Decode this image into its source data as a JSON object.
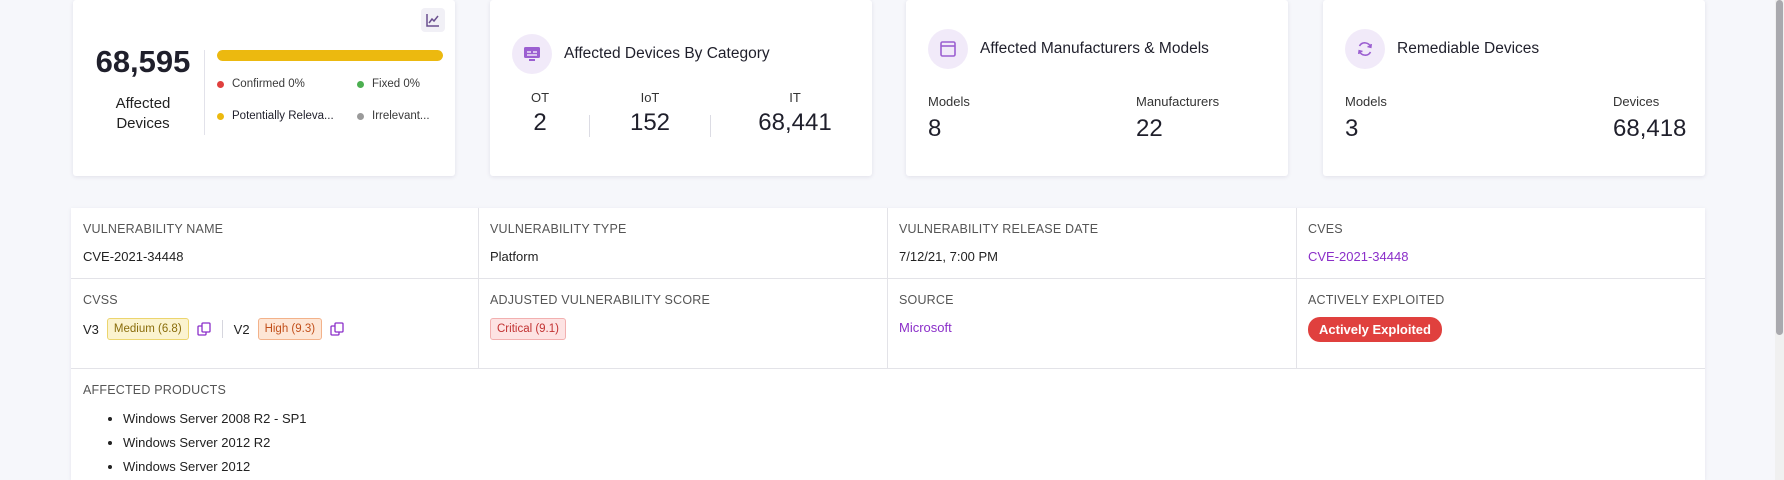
{
  "affected": {
    "count": "68,595",
    "label": "Affected Devices",
    "progress_fraction_potentially_relevant": 1.0,
    "legend": [
      {
        "label": "Confirmed 0%",
        "color": "#e0403e"
      },
      {
        "label": "Fixed 0%",
        "color": "#4caf50"
      },
      {
        "label": "Potentially Releva...",
        "color": "#ecb90f"
      },
      {
        "label": "Irrelevant...",
        "color": "#9a9a9a"
      }
    ],
    "chart_icon": "line-chart-icon"
  },
  "category": {
    "title": "Affected Devices By Category",
    "icon": "monitor-icon",
    "columns": [
      {
        "label": "OT",
        "value": "2"
      },
      {
        "label": "IoT",
        "value": "152"
      },
      {
        "label": "IT",
        "value": "68,441"
      }
    ]
  },
  "manufacturers": {
    "title": "Affected Manufacturers & Models",
    "icon": "window-icon",
    "models_label": "Models",
    "models_value": "8",
    "manufacturers_label": "Manufacturers",
    "manufacturers_value": "22"
  },
  "remediable": {
    "title": "Remediable Devices",
    "icon": "refresh-icon",
    "models_label": "Models",
    "models_value": "3",
    "devices_label": "Devices",
    "devices_value": "68,418"
  },
  "details": {
    "vuln_name_head": "VULNERABILITY NAME",
    "vuln_name": "CVE-2021-34448",
    "vuln_type_head": "VULNERABILITY TYPE",
    "vuln_type": "Platform",
    "release_head": "VULNERABILITY RELEASE DATE",
    "release": "7/12/21, 7:00 PM",
    "cves_head": "CVES",
    "cves": "CVE-2021-34448",
    "cvss_head": "CVSS",
    "cvss_v3_label": "V3",
    "cvss_v3_badge": "Medium (6.8)",
    "cvss_v2_label": "V2",
    "cvss_v2_badge": "High (9.3)",
    "adjusted_head": "ADJUSTED VULNERABILITY SCORE",
    "adjusted_badge": "Critical (9.1)",
    "source_head": "SOURCE",
    "source": "Microsoft",
    "exploited_head": "ACTIVELY EXPLOITED",
    "exploited_pill": "Actively Exploited",
    "products_head": "AFFECTED PRODUCTS",
    "products": [
      "Windows Server 2008 R2 - SP1",
      "Windows Server 2012 R2",
      "Windows Server 2012"
    ]
  },
  "colors": {
    "accent": "#8b2fc9",
    "progress": "#ecb90f",
    "exploited": "#e0403e"
  }
}
